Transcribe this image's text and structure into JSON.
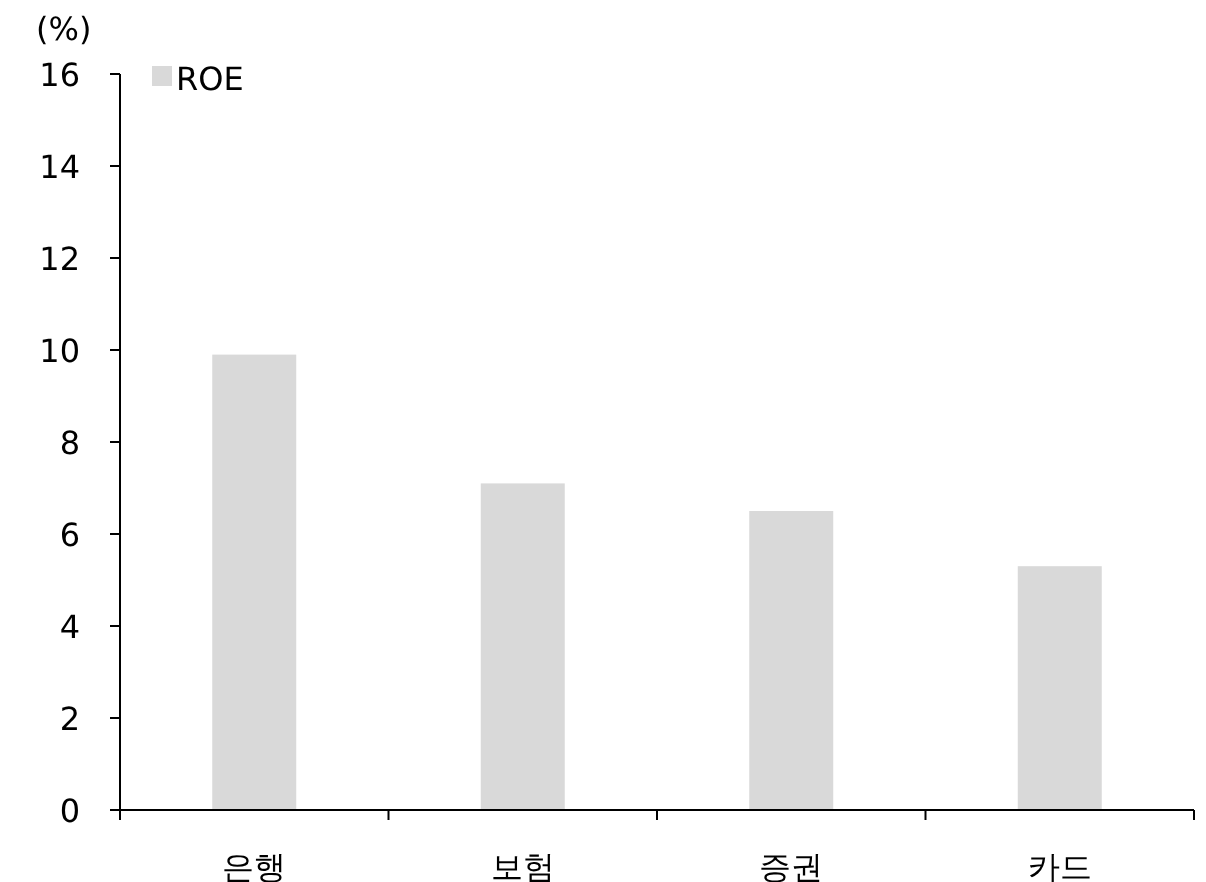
{
  "chart_data": {
    "type": "bar",
    "ylabel": "(%)",
    "categories": [
      "은행",
      "보험",
      "증권",
      "카드"
    ],
    "series": [
      {
        "name": "ROE",
        "color": "#d9d9d9",
        "values": [
          9.9,
          7.1,
          6.5,
          5.3
        ]
      }
    ],
    "ylim": [
      0,
      16
    ],
    "yticks": [
      0,
      2,
      4,
      6,
      8,
      10,
      12,
      14,
      16
    ],
    "legend": "top left",
    "grid": false
  }
}
